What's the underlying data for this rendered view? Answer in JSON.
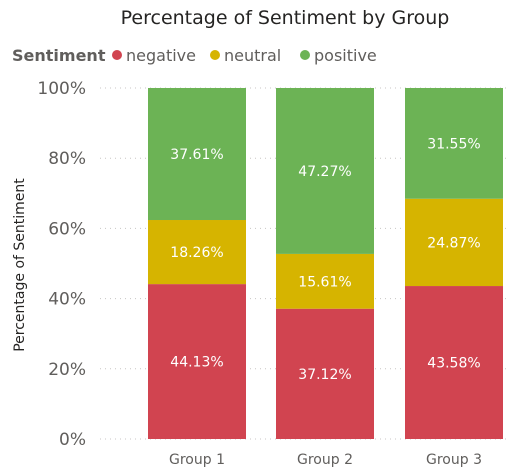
{
  "chart_data": {
    "type": "bar",
    "stacked": "percent",
    "title": "Percentage of Sentiment by Group",
    "legend": {
      "title": "Sentiment",
      "placement": "top-left",
      "entries": [
        "negative",
        "neutral",
        "positive"
      ]
    },
    "xlabel": "",
    "ylabel": "Percentage of Sentiment",
    "ylim": [
      0,
      100
    ],
    "y_ticks": [
      "0%",
      "20%",
      "40%",
      "60%",
      "80%",
      "100%"
    ],
    "grid": true,
    "categories": [
      "Group 1",
      "Group 2",
      "Group 3"
    ],
    "series": [
      {
        "name": "negative",
        "color": "#D14450",
        "values": [
          44.13,
          37.12,
          43.58
        ],
        "labels": [
          "44.13%",
          "37.12%",
          "43.58%"
        ]
      },
      {
        "name": "neutral",
        "color": "#D6B400",
        "values": [
          18.26,
          15.61,
          24.87
        ],
        "labels": [
          "18.26%",
          "15.61%",
          "24.87%"
        ]
      },
      {
        "name": "positive",
        "color": "#6CB355",
        "values": [
          37.61,
          47.27,
          31.55
        ],
        "labels": [
          "37.61%",
          "47.27%",
          "31.55%"
        ]
      }
    ]
  }
}
